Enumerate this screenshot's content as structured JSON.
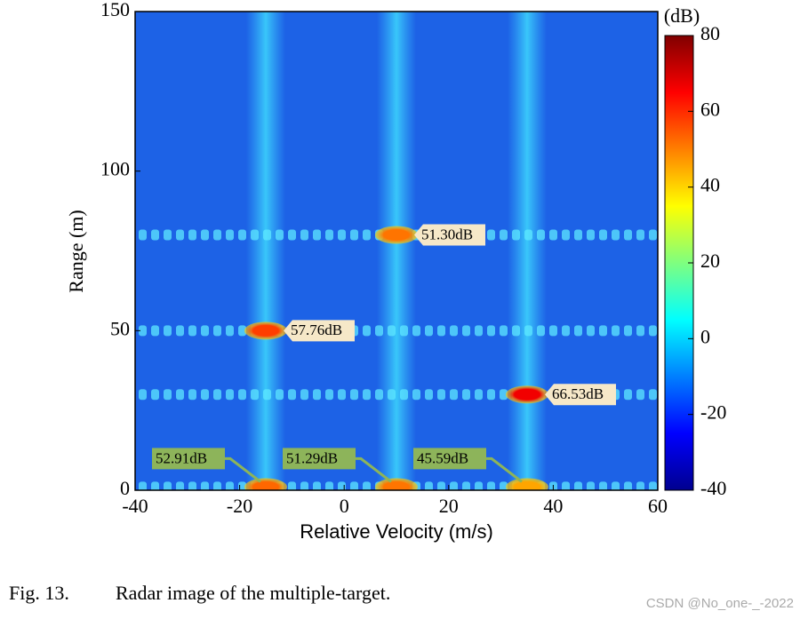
{
  "chart_data": {
    "type": "heatmap",
    "xlabel": "Relative Velocity (m/s)",
    "ylabel": "Range (m)",
    "xlim": [
      -40,
      60
    ],
    "xticks": [
      -40,
      -20,
      0,
      20,
      40,
      60
    ],
    "ylim": [
      0,
      150
    ],
    "yticks": [
      0,
      50,
      100,
      150
    ],
    "colorbar_label": "(dB)",
    "clim": [
      -40,
      80
    ],
    "cticks": [
      -40,
      -20,
      0,
      20,
      40,
      60,
      80
    ],
    "colormap": "jet",
    "points": {
      "x": [
        -15,
        10,
        35,
        -15,
        10,
        35
      ],
      "y": [
        50,
        80,
        30,
        1,
        1,
        1
      ],
      "values": [
        57.76,
        51.3,
        66.53,
        52.91,
        51.29,
        45.59
      ],
      "value_labels": [
        "57.76dB",
        "51.30dB",
        "66.53dB",
        "52.91dB",
        "51.29dB",
        "45.59dB"
      ]
    }
  },
  "caption": {
    "number": "Fig. 13.",
    "text": "Radar image of the multiple-target."
  },
  "watermark": "CSDN @No_one-_-2022"
}
